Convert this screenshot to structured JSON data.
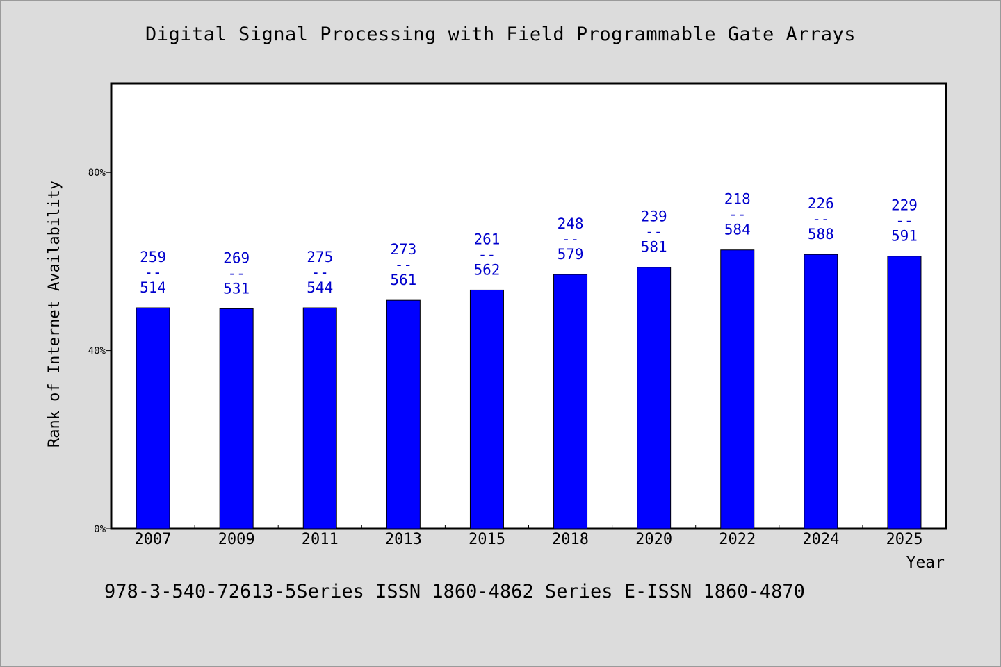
{
  "chart_data": {
    "type": "bar",
    "title": "Digital Signal Processing with Field Programmable Gate Arrays",
    "xlabel": "Year",
    "ylabel": "Rank of Internet Availability",
    "ylim": [
      0,
      100
    ],
    "yticks": [
      "0%",
      "40%",
      "80%"
    ],
    "ytick_values": [
      0,
      40,
      80
    ],
    "categories": [
      "2007",
      "2009",
      "2011",
      "2013",
      "2015",
      "2018",
      "2020",
      "2022",
      "2024",
      "2025"
    ],
    "values": [
      49.6,
      49.4,
      49.6,
      51.3,
      53.6,
      57.1,
      58.7,
      62.6,
      61.6,
      61.2
    ],
    "bar_labels": [
      {
        "top": "259",
        "sep": "--",
        "bottom": "514"
      },
      {
        "top": "269",
        "sep": "--",
        "bottom": "531"
      },
      {
        "top": "275",
        "sep": "--",
        "bottom": "544"
      },
      {
        "top": "273",
        "sep": "--",
        "bottom": "561"
      },
      {
        "top": "261",
        "sep": "--",
        "bottom": "562"
      },
      {
        "top": "248",
        "sep": "--",
        "bottom": "579"
      },
      {
        "top": "239",
        "sep": "--",
        "bottom": "581"
      },
      {
        "top": "218",
        "sep": "--",
        "bottom": "584"
      },
      {
        "top": "226",
        "sep": "--",
        "bottom": "588"
      },
      {
        "top": "229",
        "sep": "--",
        "bottom": "591"
      }
    ],
    "grid": false,
    "colors": {
      "bar": "#0000ff",
      "label": "#0000cc",
      "background": "#dcdcdc",
      "plot_background": "#ffffff"
    }
  },
  "footer": "978-3-540-72613-5Series ISSN 1860-4862 Series E-ISSN 1860-4870"
}
